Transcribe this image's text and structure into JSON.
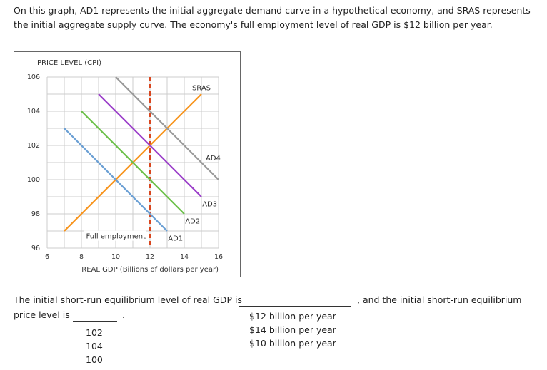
{
  "intro": {
    "text": "On this graph, AD1 represents the initial aggregate demand curve in a hypothetical economy, and SRAS represents the initial aggregate supply curve. The economy's full employment level of real GDP is $12 billion per year."
  },
  "chart_data": {
    "type": "line",
    "title": "",
    "xlabel": "REAL GDP (Billions of dollars per year)",
    "ylabel": "PRICE LEVEL (CPI)",
    "xlim": [
      6,
      16
    ],
    "ylim": [
      96,
      106
    ],
    "x_ticks": [
      6,
      8,
      10,
      12,
      14,
      16
    ],
    "y_ticks": [
      96,
      98,
      100,
      102,
      104,
      106
    ],
    "grid": true,
    "grid_step": 1,
    "series": [
      {
        "name": "SRAS",
        "color": "#f7941d",
        "points": [
          [
            7,
            97
          ],
          [
            15,
            105
          ]
        ],
        "label_at": [
          15,
          105.4
        ]
      },
      {
        "name": "AD1",
        "color": "#6a9fd4",
        "points": [
          [
            7,
            103
          ],
          [
            13,
            97
          ]
        ],
        "label_at": [
          13.3,
          96.6
        ]
      },
      {
        "name": "AD2",
        "color": "#6cc04a",
        "points": [
          [
            8,
            104
          ],
          [
            14,
            98
          ]
        ],
        "label_at": [
          14.3,
          97.6
        ]
      },
      {
        "name": "AD3",
        "color": "#9b3fc9",
        "points": [
          [
            9,
            105
          ],
          [
            15,
            99
          ]
        ],
        "label_at": [
          15.3,
          98.6
        ]
      },
      {
        "name": "AD4",
        "color": "#999999",
        "points": [
          [
            10,
            106
          ],
          [
            16,
            100
          ]
        ],
        "label_at": [
          15.5,
          101.3
        ]
      }
    ],
    "annotations": [
      {
        "type": "vline",
        "x": 12,
        "color": "#d9461e",
        "style": "dashed",
        "label": "Full employment"
      }
    ]
  },
  "question": {
    "line1_prefix": "The initial short-run equilibrium level of real GDP is",
    "line1_suffix": ", and the initial short-run equilibrium",
    "line2_prefix": "price level is",
    "line2_suffix": ".",
    "gdp_dropdown": {
      "selected": "",
      "options": [
        "$12 billion per year",
        "$14 billion per year",
        "$10 billion per year"
      ]
    },
    "price_dropdown": {
      "selected": "",
      "options": [
        "102",
        "104",
        "100"
      ]
    }
  }
}
